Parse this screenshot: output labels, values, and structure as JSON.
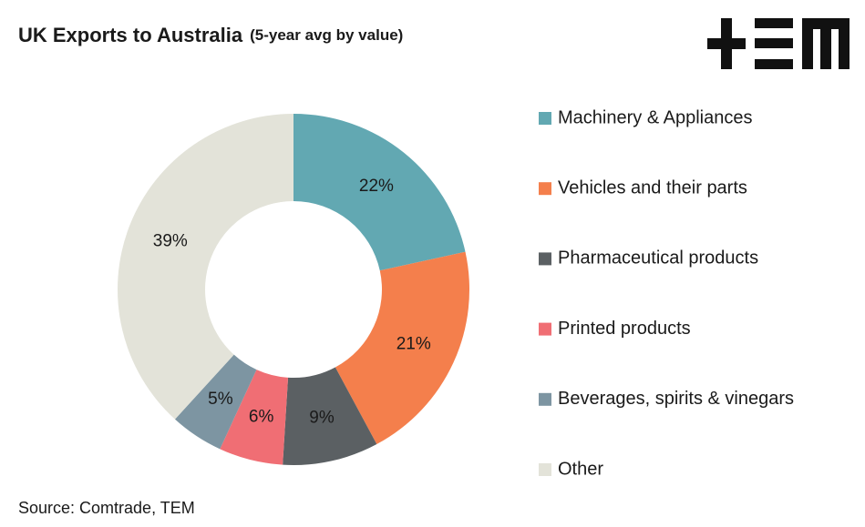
{
  "chart_data": {
    "type": "donut",
    "title": "UK Exports to Australia",
    "subtitle": "(5-year avg by value)",
    "categories": [
      "Machinery & Appliances",
      "Vehicles and their parts",
      "Pharmaceutical products",
      "Printed products",
      "Beverages, spirits & vinegars",
      "Other"
    ],
    "values": [
      22,
      21,
      9,
      6,
      5,
      39
    ],
    "value_labels": [
      "22%",
      "21%",
      "9%",
      "6%",
      "5%",
      "39%"
    ],
    "colors": [
      "#62a8b2",
      "#f47f4c",
      "#5b6063",
      "#f06e74",
      "#7d95a2",
      "#e3e3d9"
    ],
    "source": "Source: Comtrade, TEM"
  }
}
